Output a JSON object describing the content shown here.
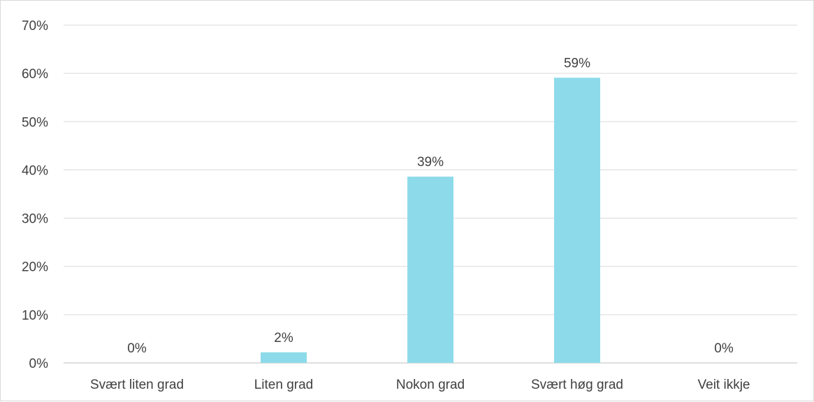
{
  "chart_data": {
    "type": "bar",
    "categories": [
      "Svært liten grad",
      "Liten grad",
      "Nokon grad",
      "Svært høg grad",
      "Veit ikkje"
    ],
    "values": [
      0,
      2.2,
      38.6,
      59.1,
      0
    ],
    "data_labels": [
      "0%",
      "2%",
      "39%",
      "59%",
      "0%"
    ],
    "y_ticks": [
      "0%",
      "10%",
      "20%",
      "30%",
      "40%",
      "50%",
      "60%",
      "70%"
    ],
    "ylim": [
      0,
      70
    ],
    "title": "",
    "xlabel": "",
    "ylabel": "",
    "grid": true,
    "legend": "none",
    "bar_color": "#8ddbea"
  }
}
